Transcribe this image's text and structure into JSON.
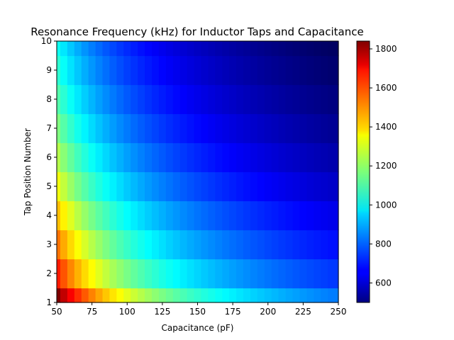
{
  "chart_data": {
    "type": "heatmap",
    "title": "Resonance Frequency (kHz) for Inductor Taps and Capacitance",
    "xlabel": "Capacitance (pF)",
    "ylabel": "Tap Position Number",
    "xlim": [
      50,
      250
    ],
    "ylim": [
      1,
      10
    ],
    "x_ticks": [
      "50",
      "75",
      "100",
      "125",
      "150",
      "175",
      "200",
      "225",
      "250"
    ],
    "y_ticks": [
      "1",
      "2",
      "3",
      "4",
      "5",
      "6",
      "7",
      "8",
      "9",
      "10"
    ],
    "x_tick_values": [
      50,
      75,
      100,
      125,
      150,
      175,
      200,
      225,
      250
    ],
    "y_tick_values": [
      1,
      2,
      3,
      4,
      5,
      6,
      7,
      8,
      9,
      10
    ],
    "colorbar": {
      "colormap": "jet",
      "range": [
        500,
        1840
      ],
      "ticks": [
        "600",
        "800",
        "1000",
        "1200",
        "1400",
        "1600",
        "1800"
      ],
      "tick_values": [
        600,
        800,
        1000,
        1200,
        1400,
        1600,
        1800
      ]
    },
    "capacitance_start": 50,
    "capacitance_step": 5,
    "capacitance_count": 40,
    "tap_positions": [
      1,
      2,
      3,
      4,
      5,
      6,
      7,
      8,
      9,
      10
    ],
    "frequency_at_50pF": [
      1840,
      1640,
      1520,
      1420,
      1320,
      1240,
      1170,
      1110,
      1060,
      1020
    ],
    "grid": false,
    "legend": "colorbar-right"
  }
}
